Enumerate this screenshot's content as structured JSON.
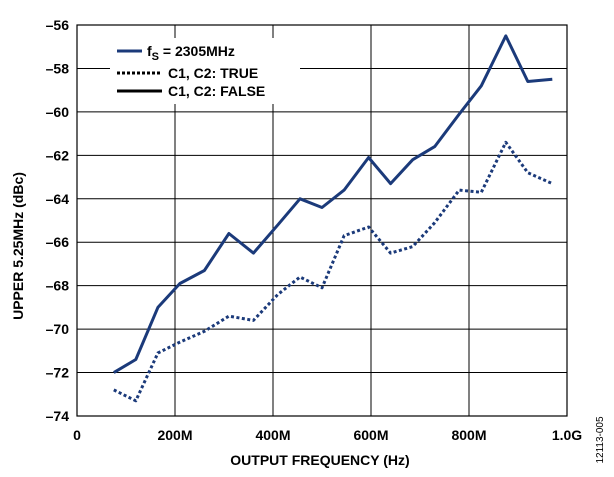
{
  "chart_data": {
    "type": "line",
    "xlabel": "OUTPUT FREQUENCY (Hz)",
    "ylabel": "UPPER 5.25MHz (dBc)",
    "xlim": [
      0,
      1000
    ],
    "ylim": [
      -74,
      -56
    ],
    "x_ticks": [
      {
        "value": 0,
        "label": "0"
      },
      {
        "value": 200,
        "label": "200M"
      },
      {
        "value": 400,
        "label": "400M"
      },
      {
        "value": 600,
        "label": "600M"
      },
      {
        "value": 800,
        "label": "800M"
      },
      {
        "value": 1000,
        "label": "1.0G"
      }
    ],
    "y_ticks": [
      {
        "value": -56,
        "label": "–56"
      },
      {
        "value": -58,
        "label": "–58"
      },
      {
        "value": -60,
        "label": "–60"
      },
      {
        "value": -62,
        "label": "–62"
      },
      {
        "value": -64,
        "label": "–64"
      },
      {
        "value": -66,
        "label": "–66"
      },
      {
        "value": -68,
        "label": "–68"
      },
      {
        "value": -70,
        "label": "–70"
      },
      {
        "value": -72,
        "label": "–72"
      },
      {
        "value": -74,
        "label": "–74"
      }
    ],
    "grid": true,
    "legend_position": "top-left",
    "legend": {
      "header_f": "f",
      "header_sub": "S",
      "header_rest": " = 2305MHz",
      "entries": [
        {
          "label": "C1, C2: TRUE",
          "style": "dotted"
        },
        {
          "label": "C1, C2: FALSE",
          "style": "solid"
        }
      ]
    },
    "line_color": "#1b3a7a",
    "series": [
      {
        "name": "C1, C2: FALSE",
        "style": "solid",
        "x": [
          75,
          120,
          165,
          210,
          260,
          310,
          360,
          410,
          455,
          500,
          545,
          595,
          640,
          685,
          730,
          780,
          825,
          875,
          920,
          970
        ],
        "y": [
          -72.0,
          -71.4,
          -69.0,
          -67.9,
          -67.3,
          -65.6,
          -66.5,
          -65.2,
          -64.0,
          -64.4,
          -63.6,
          -62.1,
          -63.3,
          -62.2,
          -61.6,
          -60.1,
          -58.8,
          -56.5,
          -58.6,
          -58.5
        ]
      },
      {
        "name": "C1, C2: TRUE",
        "style": "dotted",
        "x": [
          75,
          120,
          165,
          210,
          260,
          310,
          360,
          410,
          455,
          500,
          545,
          595,
          640,
          685,
          730,
          780,
          825,
          875,
          920,
          970
        ],
        "y": [
          -72.8,
          -73.3,
          -71.1,
          -70.6,
          -70.1,
          -69.4,
          -69.6,
          -68.4,
          -67.6,
          -68.1,
          -65.7,
          -65.3,
          -66.5,
          -66.2,
          -65.1,
          -63.6,
          -63.7,
          -61.4,
          -62.8,
          -63.3
        ]
      }
    ]
  },
  "figure_id": "12113-005"
}
